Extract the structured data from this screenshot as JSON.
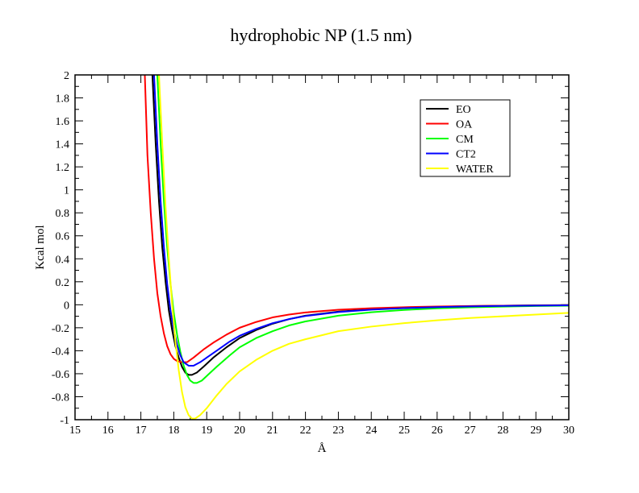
{
  "chart_data": {
    "type": "line",
    "title": "hydrophobic NP (1.5 nm)",
    "xlabel": "Å",
    "ylabel": "Kcal mol",
    "xlim": [
      15,
      30
    ],
    "ylim": [
      -1,
      2
    ],
    "x_ticks": [
      "15",
      "16",
      "17",
      "18",
      "19",
      "20",
      "21",
      "22",
      "23",
      "24",
      "25",
      "26",
      "27",
      "28",
      "29",
      "30"
    ],
    "y_ticks": [
      "-1",
      "-0.8",
      "-0.6",
      "-0.4",
      "-0.2",
      "0",
      "0.2",
      "0.4",
      "0.6",
      "0.8",
      "1",
      "1.2",
      "1.4",
      "1.6",
      "1.8",
      "2"
    ],
    "grid": false,
    "legend_position": "top-right",
    "series": [
      {
        "name": "EO",
        "color": "#000000",
        "points": [
          [
            17.35,
            2.0
          ],
          [
            17.45,
            1.4
          ],
          [
            17.55,
            0.9
          ],
          [
            17.65,
            0.5
          ],
          [
            17.75,
            0.2
          ],
          [
            17.85,
            -0.05
          ],
          [
            17.95,
            -0.22
          ],
          [
            18.05,
            -0.36
          ],
          [
            18.15,
            -0.46
          ],
          [
            18.25,
            -0.54
          ],
          [
            18.35,
            -0.59
          ],
          [
            18.45,
            -0.61
          ],
          [
            18.55,
            -0.61
          ],
          [
            18.7,
            -0.59
          ],
          [
            18.9,
            -0.54
          ],
          [
            19.2,
            -0.46
          ],
          [
            19.6,
            -0.37
          ],
          [
            20.0,
            -0.29
          ],
          [
            20.5,
            -0.22
          ],
          [
            21.0,
            -0.165
          ],
          [
            21.5,
            -0.125
          ],
          [
            22.0,
            -0.095
          ],
          [
            23.0,
            -0.06
          ],
          [
            24.0,
            -0.04
          ],
          [
            25.0,
            -0.027
          ],
          [
            26.0,
            -0.018
          ],
          [
            27.0,
            -0.012
          ],
          [
            28.0,
            -0.008
          ],
          [
            29.0,
            -0.005
          ],
          [
            30.0,
            -0.003
          ]
        ]
      },
      {
        "name": "OA",
        "color": "#ff0000",
        "points": [
          [
            17.12,
            2.0
          ],
          [
            17.2,
            1.3
          ],
          [
            17.3,
            0.8
          ],
          [
            17.4,
            0.4
          ],
          [
            17.5,
            0.1
          ],
          [
            17.6,
            -0.1
          ],
          [
            17.7,
            -0.25
          ],
          [
            17.8,
            -0.36
          ],
          [
            17.9,
            -0.43
          ],
          [
            18.0,
            -0.47
          ],
          [
            18.1,
            -0.49
          ],
          [
            18.25,
            -0.5
          ],
          [
            18.4,
            -0.5
          ],
          [
            18.6,
            -0.46
          ],
          [
            18.9,
            -0.39
          ],
          [
            19.2,
            -0.33
          ],
          [
            19.6,
            -0.26
          ],
          [
            20.0,
            -0.2
          ],
          [
            20.5,
            -0.15
          ],
          [
            21.0,
            -0.11
          ],
          [
            21.5,
            -0.085
          ],
          [
            22.0,
            -0.067
          ],
          [
            23.0,
            -0.043
          ],
          [
            24.0,
            -0.03
          ],
          [
            25.0,
            -0.021
          ],
          [
            26.0,
            -0.015
          ],
          [
            27.0,
            -0.011
          ],
          [
            28.0,
            -0.008
          ],
          [
            29.0,
            -0.006
          ],
          [
            30.0,
            -0.004
          ]
        ]
      },
      {
        "name": "CM",
        "color": "#00ff00",
        "points": [
          [
            17.5,
            2.0
          ],
          [
            17.6,
            1.4
          ],
          [
            17.7,
            0.9
          ],
          [
            17.8,
            0.5
          ],
          [
            17.9,
            0.18
          ],
          [
            18.0,
            -0.07
          ],
          [
            18.1,
            -0.26
          ],
          [
            18.2,
            -0.41
          ],
          [
            18.3,
            -0.53
          ],
          [
            18.4,
            -0.61
          ],
          [
            18.5,
            -0.66
          ],
          [
            18.6,
            -0.68
          ],
          [
            18.7,
            -0.68
          ],
          [
            18.85,
            -0.66
          ],
          [
            19.0,
            -0.62
          ],
          [
            19.3,
            -0.54
          ],
          [
            19.7,
            -0.44
          ],
          [
            20.0,
            -0.37
          ],
          [
            20.5,
            -0.29
          ],
          [
            21.0,
            -0.23
          ],
          [
            21.5,
            -0.18
          ],
          [
            22.0,
            -0.145
          ],
          [
            23.0,
            -0.095
          ],
          [
            24.0,
            -0.065
          ],
          [
            25.0,
            -0.045
          ],
          [
            26.0,
            -0.031
          ],
          [
            27.0,
            -0.022
          ],
          [
            28.0,
            -0.016
          ],
          [
            29.0,
            -0.011
          ],
          [
            30.0,
            -0.008
          ]
        ]
      },
      {
        "name": "CT2",
        "color": "#0000ff",
        "points": [
          [
            17.4,
            2.0
          ],
          [
            17.5,
            1.4
          ],
          [
            17.6,
            0.9
          ],
          [
            17.7,
            0.5
          ],
          [
            17.8,
            0.18
          ],
          [
            17.9,
            -0.05
          ],
          [
            18.0,
            -0.22
          ],
          [
            18.1,
            -0.35
          ],
          [
            18.2,
            -0.44
          ],
          [
            18.3,
            -0.5
          ],
          [
            18.45,
            -0.53
          ],
          [
            18.6,
            -0.53
          ],
          [
            18.8,
            -0.5
          ],
          [
            19.0,
            -0.46
          ],
          [
            19.3,
            -0.4
          ],
          [
            19.7,
            -0.32
          ],
          [
            20.0,
            -0.27
          ],
          [
            20.5,
            -0.21
          ],
          [
            21.0,
            -0.16
          ],
          [
            21.5,
            -0.125
          ],
          [
            22.0,
            -0.098
          ],
          [
            23.0,
            -0.063
          ],
          [
            24.0,
            -0.042
          ],
          [
            25.0,
            -0.029
          ],
          [
            26.0,
            -0.02
          ],
          [
            27.0,
            -0.014
          ],
          [
            28.0,
            -0.01
          ],
          [
            29.0,
            -0.007
          ],
          [
            30.0,
            -0.005
          ]
        ]
      },
      {
        "name": "WATER",
        "color": "#ffff00",
        "points": [
          [
            17.55,
            2.0
          ],
          [
            17.65,
            1.4
          ],
          [
            17.75,
            0.85
          ],
          [
            17.85,
            0.4
          ],
          [
            17.95,
            0.0
          ],
          [
            18.05,
            -0.32
          ],
          [
            18.15,
            -0.57
          ],
          [
            18.25,
            -0.76
          ],
          [
            18.35,
            -0.89
          ],
          [
            18.45,
            -0.96
          ],
          [
            18.55,
            -0.99
          ],
          [
            18.65,
            -0.99
          ],
          [
            18.8,
            -0.96
          ],
          [
            19.0,
            -0.9
          ],
          [
            19.3,
            -0.79
          ],
          [
            19.6,
            -0.69
          ],
          [
            20.0,
            -0.58
          ],
          [
            20.5,
            -0.48
          ],
          [
            21.0,
            -0.4
          ],
          [
            21.5,
            -0.34
          ],
          [
            22.0,
            -0.3
          ],
          [
            23.0,
            -0.23
          ],
          [
            24.0,
            -0.19
          ],
          [
            25.0,
            -0.16
          ],
          [
            26.0,
            -0.135
          ],
          [
            27.0,
            -0.115
          ],
          [
            28.0,
            -0.1
          ],
          [
            29.0,
            -0.085
          ],
          [
            30.0,
            -0.07
          ]
        ]
      }
    ]
  }
}
